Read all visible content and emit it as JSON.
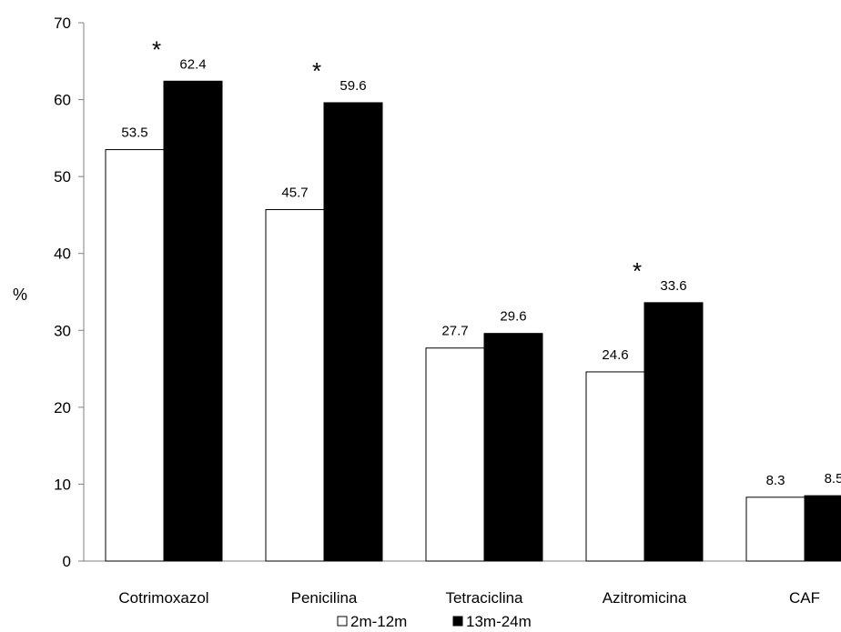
{
  "chart_data": {
    "type": "bar",
    "categories": [
      "Cotrimoxazol",
      "Penicilina",
      "Tetraciclina",
      "Azitromicina",
      "CAF"
    ],
    "series": [
      {
        "name": "2m-12m",
        "values": [
          53.5,
          45.7,
          27.7,
          24.6,
          8.3
        ],
        "labels": [
          "53.5",
          "45.7",
          "27.7",
          "24.6",
          "8.3"
        ],
        "color": "#ffffff"
      },
      {
        "name": "13m-24m",
        "values": [
          62.4,
          59.6,
          29.6,
          33.6,
          8.5
        ],
        "labels": [
          "62.4",
          "59.6",
          "29.6",
          "33.6",
          "8.5"
        ],
        "color": "#000000"
      }
    ],
    "significance_marker": "*",
    "significant": [
      true,
      true,
      false,
      true,
      false
    ],
    "ylabel": "%",
    "xlabel": "",
    "title": "",
    "ylim": [
      0,
      70
    ],
    "yticks": [
      0,
      10,
      20,
      30,
      40,
      50,
      60,
      70
    ],
    "grid": false,
    "legend_position": "bottom"
  }
}
